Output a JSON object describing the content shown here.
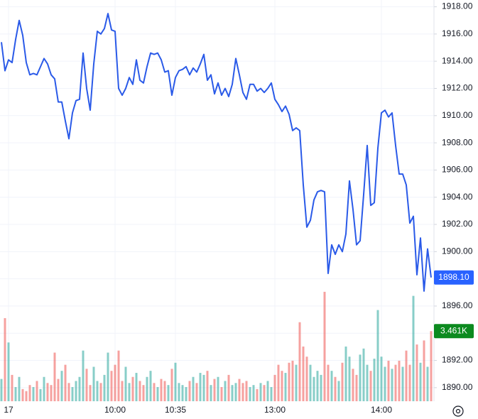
{
  "chart_data": {
    "type": "line",
    "categories": [
      null,
      null,
      "17",
      null,
      null,
      null,
      null,
      null,
      null,
      null,
      null,
      null,
      null,
      null,
      null,
      null,
      null,
      null,
      null,
      null,
      null,
      null,
      null,
      null,
      null,
      null,
      null,
      null,
      null,
      null,
      null,
      null,
      "10:00",
      null,
      null,
      null,
      null,
      null,
      null,
      null,
      null,
      null,
      null,
      null,
      null,
      null,
      null,
      null,
      null,
      "10:35",
      null,
      null,
      null,
      null,
      null,
      null,
      null,
      null,
      null,
      null,
      null,
      null,
      null,
      null,
      null,
      null,
      null,
      null,
      null,
      null,
      null,
      null,
      null,
      null,
      null,
      null,
      null,
      "13:00",
      null,
      null,
      null,
      null,
      null,
      null,
      null,
      null,
      null,
      null,
      null,
      null,
      null,
      null,
      null,
      null,
      null,
      null,
      null,
      null,
      null,
      null,
      null,
      null,
      null,
      null,
      null,
      null,
      null,
      "14:00",
      null,
      null,
      null,
      null,
      null,
      null,
      null,
      null,
      null,
      null,
      null,
      null,
      null,
      null
    ],
    "series": [
      {
        "color": "#2a5ae8",
        "values": [
          1915.4,
          1913.3,
          1914.1,
          1913.9,
          1915.6,
          1917.0,
          1915.9,
          1913.9,
          1913.0,
          1913.1,
          1913.0,
          1913.6,
          1914.2,
          1913.8,
          1913.0,
          1912.7,
          1911.0,
          1911.0,
          1909.6,
          1908.3,
          1910.2,
          1911.1,
          1911.2,
          1914.6,
          1912.0,
          1910.4,
          1913.8,
          1916.2,
          1916.0,
          1916.4,
          1917.5,
          1916.3,
          1916.2,
          1912.0,
          1911.5,
          1912.0,
          1912.8,
          1912.3,
          1914.1,
          1912.6,
          1912.4,
          1913.6,
          1914.6,
          1914.5,
          1914.6,
          1914.1,
          1913.2,
          1913.3,
          1911.5,
          1912.8,
          1913.3,
          1913.4,
          1913.6,
          1913.0,
          1913.5,
          1913.2,
          1913.8,
          1914.5,
          1912.6,
          1913.0,
          1911.6,
          1912.4,
          1911.5,
          1912.0,
          1911.4,
          1912.3,
          1914.2,
          1913.0,
          1911.7,
          1911.2,
          1912.3,
          1912.3,
          1911.8,
          1912.0,
          1911.7,
          1912.0,
          1912.4,
          1911.2,
          1910.8,
          1910.3,
          1910.7,
          1910.1,
          1908.9,
          1909.1,
          1908.9,
          1904.9,
          1901.8,
          1902.3,
          1903.8,
          1904.4,
          1904.5,
          1904.4,
          1898.4,
          1900.5,
          1899.8,
          1900.5,
          1900.0,
          1901.3,
          1905.2,
          1903.1,
          1900.5,
          1900.8,
          1904.2,
          1907.8,
          1903.4,
          1903.6,
          1907.6,
          1910.2,
          1910.4,
          1909.9,
          1910.2,
          1907.8,
          1905.7,
          1905.7,
          1904.9,
          1902.1,
          1902.6,
          1898.3,
          1901.0,
          1897.1,
          1900.2,
          1898.1
        ]
      },
      {
        "axis": "y2",
        "up_color": "#26a69a",
        "down_color": "#ef5350",
        "values": [
          1100,
          4100,
          2900,
          1300,
          700,
          1200,
          600,
          500,
          800,
          700,
          1000,
          600,
          1200,
          900,
          800,
          2400,
          1100,
          1500,
          1800,
          900,
          700,
          1000,
          1200,
          2500,
          1600,
          800,
          1700,
          1000,
          900,
          1300,
          2400,
          1500,
          1800,
          2500,
          1000,
          1700,
          900,
          1200,
          1400,
          1000,
          800,
          1200,
          1500,
          900,
          700,
          1100,
          1000,
          800,
          1600,
          1900,
          900,
          800,
          700,
          1000,
          1200,
          900,
          1400,
          1300,
          1500,
          800,
          1100,
          1200,
          700,
          1000,
          1300,
          800,
          900,
          1100,
          900,
          1000,
          700,
          800,
          600,
          900,
          800,
          1000,
          700,
          1300,
          1800,
          1500,
          1400,
          1900,
          2000,
          1800,
          3900,
          2700,
          2200,
          1800,
          1200,
          1500,
          1300,
          5400,
          1800,
          1500,
          1200,
          1000,
          1900,
          2700,
          2200,
          1600,
          1300,
          2300,
          2600,
          1800,
          1500,
          2100,
          4500,
          2200,
          1700,
          2000,
          1600,
          1800,
          2000,
          1700,
          2500,
          1800,
          5200,
          2800,
          1900,
          3000,
          1700,
          3461
        ]
      }
    ],
    "price_label": "1898.10",
    "price_label_color": "#2962ff",
    "volume_label": "3.461K",
    "volume_label_color": "#0c8a1f",
    "ylim": [
      1889.0,
      1918.5
    ],
    "yticks": [
      {
        "value": 1890,
        "label": "1890.00"
      },
      {
        "value": 1892,
        "label": "1892.00"
      },
      {
        "value": 1894,
        "label": "1894.00"
      },
      {
        "value": 1896,
        "label": "1896.00"
      },
      {
        "value": 1898,
        "label": "1898.00"
      },
      {
        "value": 1900,
        "label": "1900.00"
      },
      {
        "value": 1902,
        "label": "1902.00"
      },
      {
        "value": 1904,
        "label": "1904.00"
      },
      {
        "value": 1906,
        "label": "1906.00"
      },
      {
        "value": 1908,
        "label": "1908.00"
      },
      {
        "value": 1910,
        "label": "1910.00"
      },
      {
        "value": 1912,
        "label": "1912.00"
      },
      {
        "value": 1914,
        "label": "1914.00"
      },
      {
        "value": 1916,
        "label": "1916.00"
      },
      {
        "value": 1918,
        "label": "1918.00"
      }
    ],
    "y2lim": [
      0,
      19800
    ],
    "grid": true
  }
}
